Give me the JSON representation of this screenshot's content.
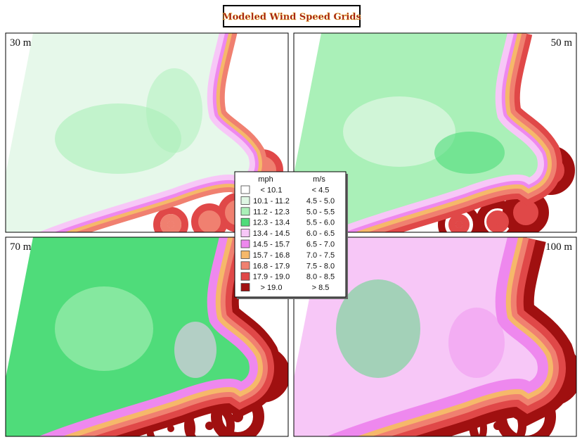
{
  "title": "Modeled Wind Speed Grids",
  "panels": [
    {
      "label": "30 m"
    },
    {
      "label": "50 m"
    },
    {
      "label": "70 m"
    },
    {
      "label": "100 m"
    }
  ],
  "legend": {
    "headers": [
      "mph",
      "m/s"
    ],
    "rows": [
      {
        "mph": "< 10.1",
        "ms": "< 4.5",
        "color": "#ffffff"
      },
      {
        "mph": "10.1 - 11.2",
        "ms": "4.5 - 5.0",
        "color": "#dff7e4"
      },
      {
        "mph": "11.2 - 12.3",
        "ms": "5.0 - 5.5",
        "color": "#aaf0b8"
      },
      {
        "mph": "12.3 - 13.4",
        "ms": "5.5 - 6.0",
        "color": "#4fdc7a"
      },
      {
        "mph": "13.4 - 14.5",
        "ms": "6.0 - 6.5",
        "color": "#f7c7f7"
      },
      {
        "mph": "14.5 - 15.7",
        "ms": "6.5 - 7.0",
        "color": "#ee88ee"
      },
      {
        "mph": "15.7 - 16.8",
        "ms": "7.0 - 7.5",
        "color": "#f6b86a"
      },
      {
        "mph": "16.8 - 17.9",
        "ms": "7.5 - 8.0",
        "color": "#f08070"
      },
      {
        "mph": "17.9 - 19.0",
        "ms": "8.0 - 8.5",
        "color": "#e04848"
      },
      {
        "mph": ">  19.0",
        "ms": "> 8.5",
        "color": "#a01010"
      }
    ]
  }
}
